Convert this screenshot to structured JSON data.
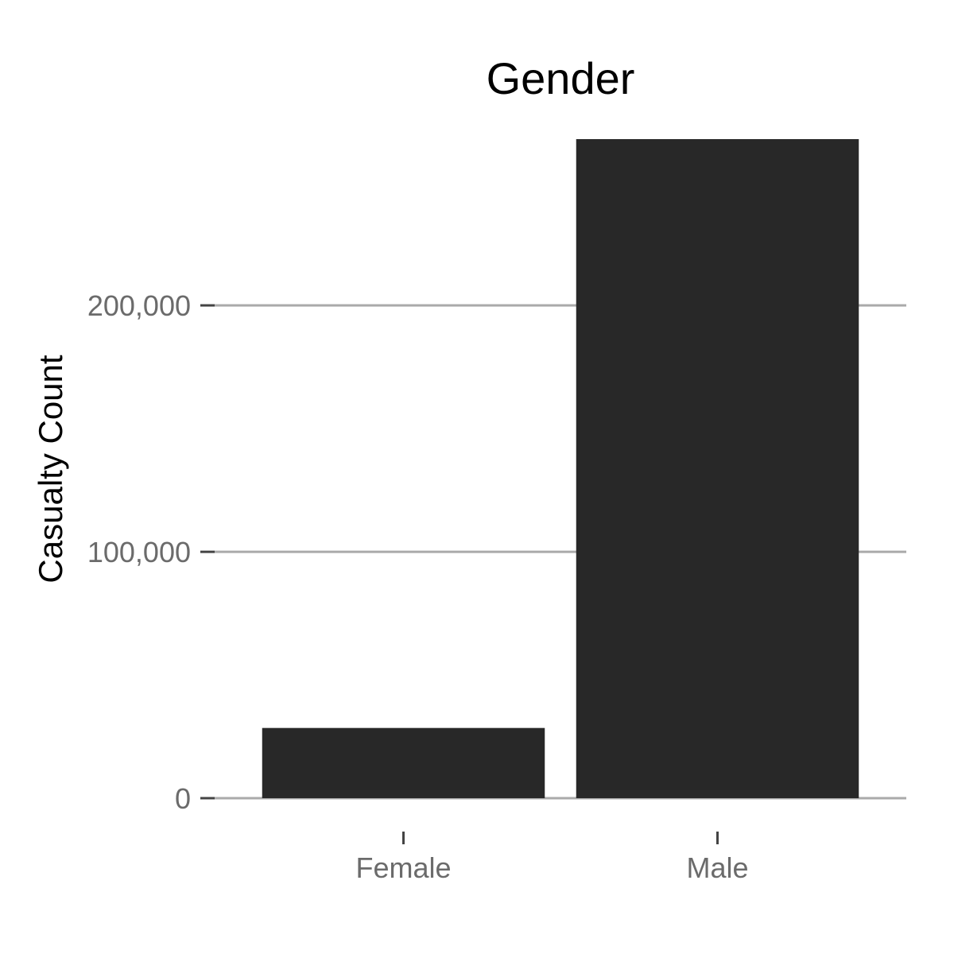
{
  "chart_data": {
    "type": "bar",
    "title": "Gender",
    "xlabel": "",
    "ylabel": "Casualty Count",
    "categories": [
      "Female",
      "Male"
    ],
    "values": [
      28500,
      267500
    ],
    "ylim": [
      0,
      267500
    ],
    "yticks": [
      {
        "value": 0,
        "label": "0"
      },
      {
        "value": 100000,
        "label": "100,000"
      },
      {
        "value": 200000,
        "label": "200,000"
      }
    ],
    "grid": "horizontal",
    "legend": "none",
    "bar_color": "#282828",
    "grid_color": "#aaaaaa"
  }
}
